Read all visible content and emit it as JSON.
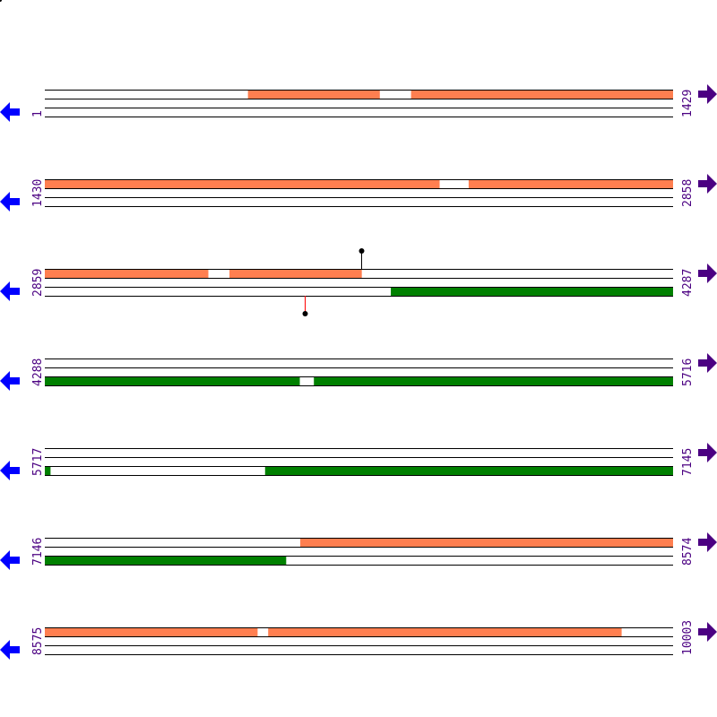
{
  "colors": {
    "forward": "#ff7f50",
    "reverse": "#008000",
    "line": "#000000",
    "left_arrow": "#0000ff",
    "right_arrow": "#4b0082",
    "label": "#4b0082",
    "marker_stick": "#ff0000"
  },
  "bases_per_row": 1429,
  "rows": [
    {
      "start": "1",
      "end": "1429",
      "upper": [
        [
          463,
          762
        ],
        [
          834,
          1429
        ]
      ],
      "lower": []
    },
    {
      "start": "1430",
      "end": "2858",
      "upper": [
        [
          1430,
          2327
        ],
        [
          2394,
          2858
        ]
      ],
      "lower": []
    },
    {
      "start": "2859",
      "end": "4287",
      "upper": [
        [
          2859,
          3230
        ],
        [
          3279,
          3579
        ]
      ],
      "lower": [
        [
          3646,
          4287
        ]
      ],
      "markers": [
        {
          "pos": 3579,
          "track": "upper"
        },
        {
          "pos": 3450,
          "track": "lower"
        }
      ]
    },
    {
      "start": "4288",
      "end": "5716",
      "upper": [],
      "lower": [
        [
          4288,
          4867
        ],
        [
          4900,
          5716
        ]
      ]
    },
    {
      "start": "5717",
      "end": "7145",
      "upper": [],
      "lower": [
        [
          5717,
          5729
        ],
        [
          6218,
          7145
        ]
      ]
    },
    {
      "start": "7146",
      "end": "8574",
      "upper": [
        [
          7727,
          8574
        ]
      ],
      "lower": [
        [
          7146,
          7694
        ]
      ]
    },
    {
      "start": "8575",
      "end": "10003",
      "upper": [
        [
          8575,
          9058
        ],
        [
          9083,
          9886
        ]
      ],
      "lower": []
    }
  ]
}
